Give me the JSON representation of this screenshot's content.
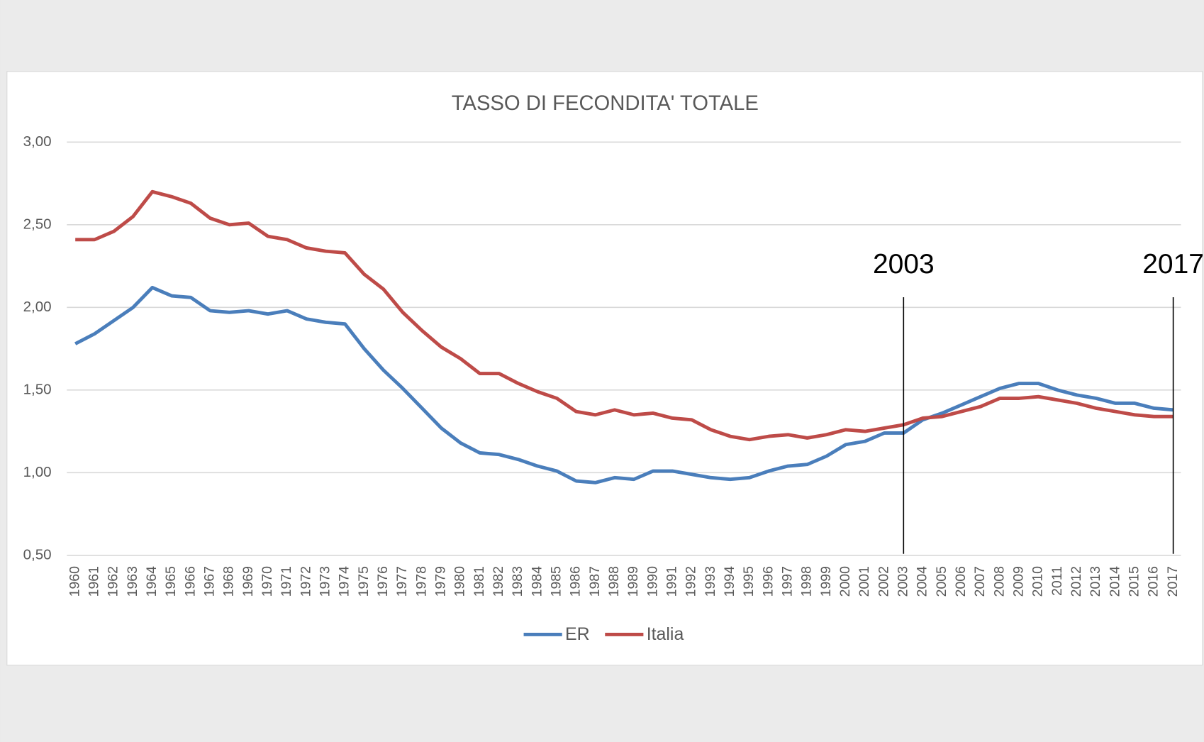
{
  "chart_data": {
    "type": "line",
    "title": "TASSO DI FECONDITA' TOTALE",
    "categories": [
      "1960",
      "1961",
      "1962",
      "1963",
      "1964",
      "1965",
      "1966",
      "1967",
      "1968",
      "1969",
      "1970",
      "1971",
      "1972",
      "1973",
      "1974",
      "1975",
      "1976",
      "1977",
      "1978",
      "1979",
      "1980",
      "1981",
      "1982",
      "1983",
      "1984",
      "1985",
      "1986",
      "1987",
      "1988",
      "1989",
      "1990",
      "1991",
      "1992",
      "1993",
      "1994",
      "1995",
      "1996",
      "1997",
      "1998",
      "1999",
      "2000",
      "2001",
      "2002",
      "2003",
      "2004",
      "2005",
      "2006",
      "2007",
      "2008",
      "2009",
      "2010",
      "2011",
      "2012",
      "2013",
      "2014",
      "2015",
      "2016",
      "2017"
    ],
    "series": [
      {
        "name": "ER",
        "color": "#4a7ebb",
        "values": [
          1.78,
          1.84,
          1.92,
          2.0,
          2.12,
          2.07,
          2.06,
          1.98,
          1.97,
          1.98,
          1.96,
          1.98,
          1.93,
          1.91,
          1.9,
          1.75,
          1.62,
          1.51,
          1.39,
          1.27,
          1.18,
          1.12,
          1.11,
          1.08,
          1.04,
          1.01,
          0.95,
          0.94,
          0.97,
          0.96,
          1.01,
          1.01,
          0.99,
          0.97,
          0.96,
          0.97,
          1.01,
          1.04,
          1.05,
          1.1,
          1.17,
          1.19,
          1.24,
          1.24,
          1.32,
          1.36,
          1.41,
          1.46,
          1.51,
          1.54,
          1.54,
          1.5,
          1.47,
          1.45,
          1.42,
          1.42,
          1.39,
          1.38
        ]
      },
      {
        "name": "Italia",
        "color": "#be4b48",
        "values": [
          2.41,
          2.41,
          2.46,
          2.55,
          2.7,
          2.67,
          2.63,
          2.54,
          2.5,
          2.51,
          2.43,
          2.41,
          2.36,
          2.34,
          2.33,
          2.2,
          2.11,
          1.97,
          1.86,
          1.76,
          1.69,
          1.6,
          1.6,
          1.54,
          1.49,
          1.45,
          1.37,
          1.35,
          1.38,
          1.35,
          1.36,
          1.33,
          1.32,
          1.26,
          1.22,
          1.2,
          1.22,
          1.23,
          1.21,
          1.23,
          1.26,
          1.25,
          1.27,
          1.29,
          1.33,
          1.34,
          1.37,
          1.4,
          1.45,
          1.45,
          1.46,
          1.44,
          1.42,
          1.39,
          1.37,
          1.35,
          1.34,
          1.34
        ]
      }
    ],
    "ylim": [
      0.5,
      3.0
    ],
    "yticks": [
      {
        "value": 0.5,
        "label": "0,50"
      },
      {
        "value": 1.0,
        "label": "1,00"
      },
      {
        "value": 1.5,
        "label": "1,50"
      },
      {
        "value": 2.0,
        "label": "2,00"
      },
      {
        "value": 2.5,
        "label": "2,50"
      },
      {
        "value": 3.0,
        "label": "3,00"
      }
    ],
    "grid": true,
    "legend": "bottom",
    "annotations": [
      {
        "text": "2003",
        "x": "2003"
      },
      {
        "text": "2017",
        "x": "2017"
      }
    ]
  }
}
